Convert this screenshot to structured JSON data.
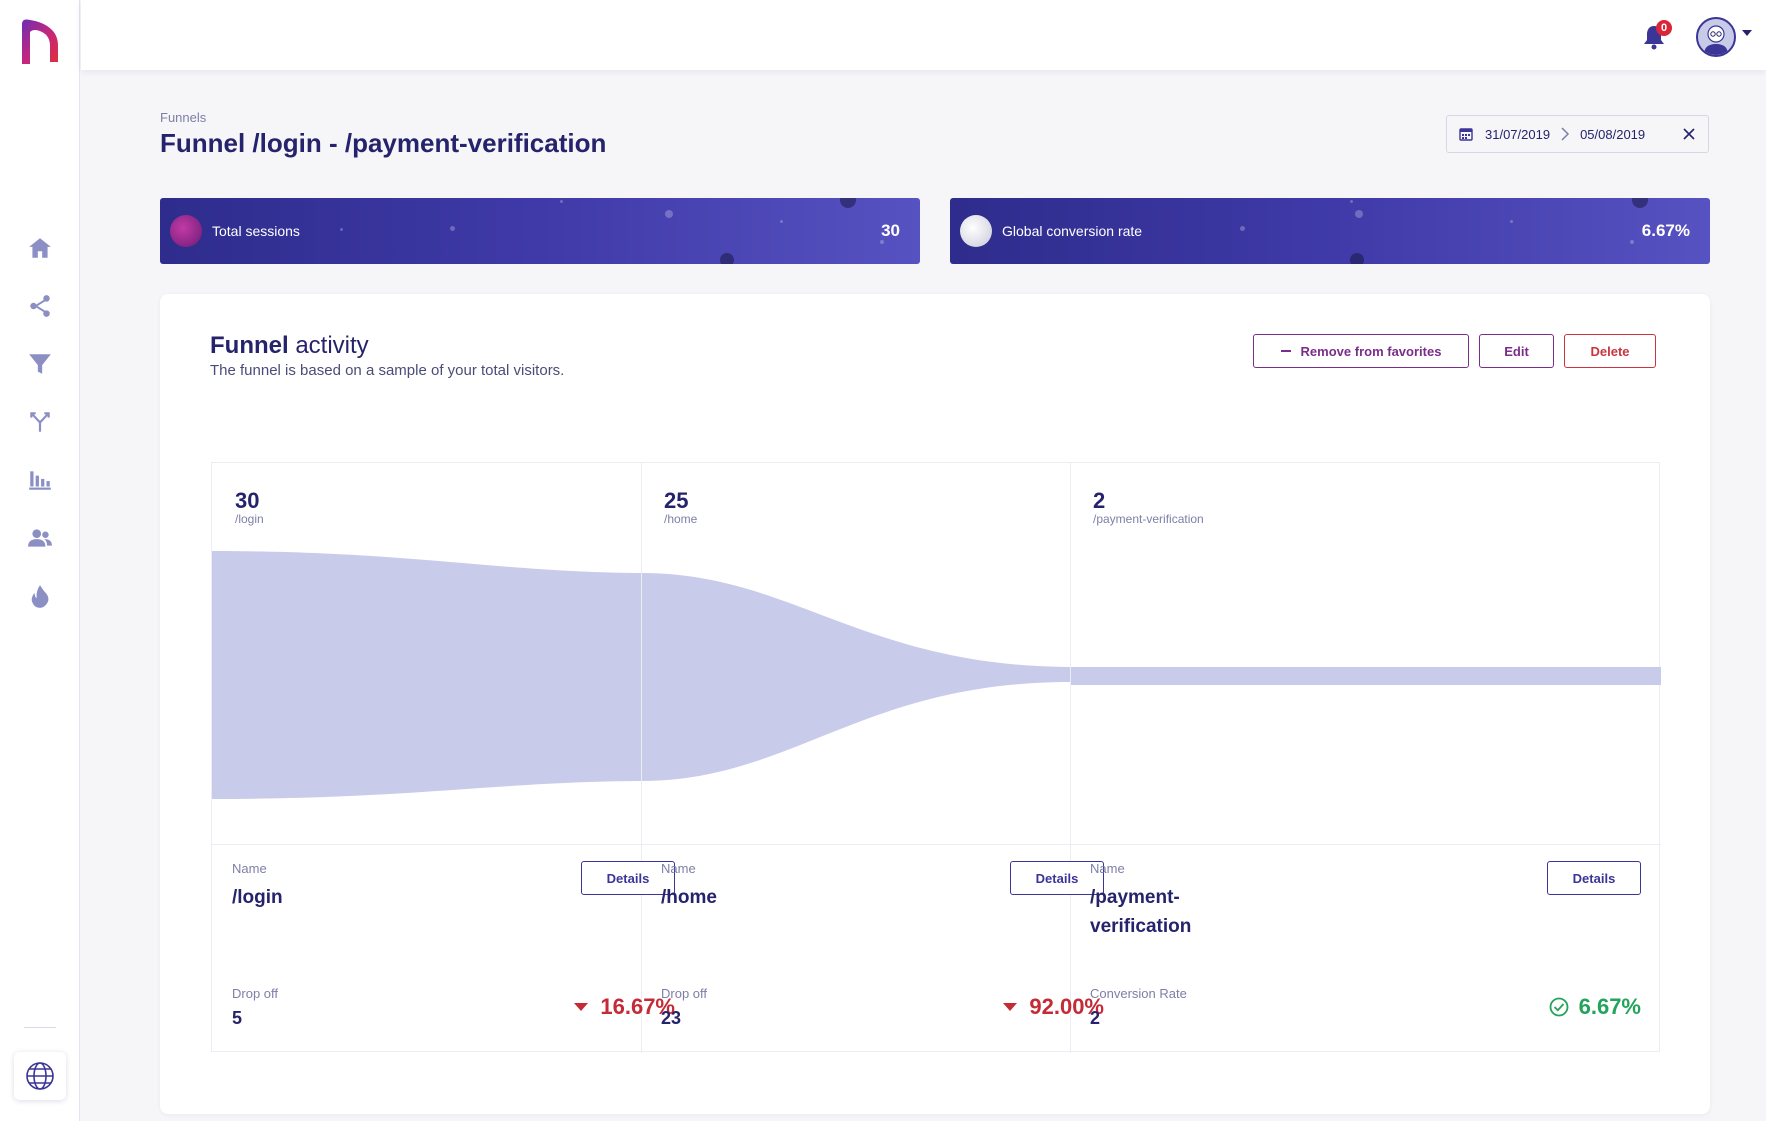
{
  "topbar": {
    "notification_count": "0"
  },
  "sidebar": {
    "items": [
      {
        "icon": "home-icon"
      },
      {
        "icon": "share-icon"
      },
      {
        "icon": "funnel-icon"
      },
      {
        "icon": "merge-icon"
      },
      {
        "icon": "bar-chart-icon"
      },
      {
        "icon": "users-icon"
      },
      {
        "icon": "fire-icon"
      }
    ],
    "bottom_icon": "globe-icon"
  },
  "header": {
    "breadcrumb": "Funnels",
    "title": "Funnel /login - /payment-verification",
    "date_start": "31/07/2019",
    "date_end": "05/08/2019"
  },
  "kpis": [
    {
      "label": "Total sessions",
      "value": "30"
    },
    {
      "label": "Global conversion rate",
      "value": "6.67%"
    }
  ],
  "card": {
    "title_bold": "Funnel",
    "title_rest": " activity",
    "subtitle": "The funnel is based on a sample of your total visitors.",
    "btn_remove_favorites": "Remove from favorites",
    "btn_edit": "Edit",
    "btn_delete": "Delete"
  },
  "funnel": {
    "steps": [
      {
        "count": "30",
        "path": "/login",
        "name_label": "Name",
        "name": "/login",
        "details": "Details",
        "metric_label": "Drop off",
        "metric_value": "5",
        "percent": "16.67%",
        "percent_type": "drop"
      },
      {
        "count": "25",
        "path": "/home",
        "name_label": "Name",
        "name": "/home",
        "details": "Details",
        "metric_label": "Drop off",
        "metric_value": "23",
        "percent": "92.00%",
        "percent_type": "drop"
      },
      {
        "count": "2",
        "path": "/payment-verification",
        "name_label": "Name",
        "name": "/payment-verification",
        "details": "Details",
        "metric_label": "Conversion Rate",
        "metric_value": "2",
        "percent": "6.67%",
        "percent_type": "conversion"
      }
    ]
  },
  "colors": {
    "primary": "#25236b",
    "accent_purple": "#7a2d89",
    "danger": "#c42b36",
    "success": "#23a35b",
    "funnel_fill": "#c9cbea"
  }
}
